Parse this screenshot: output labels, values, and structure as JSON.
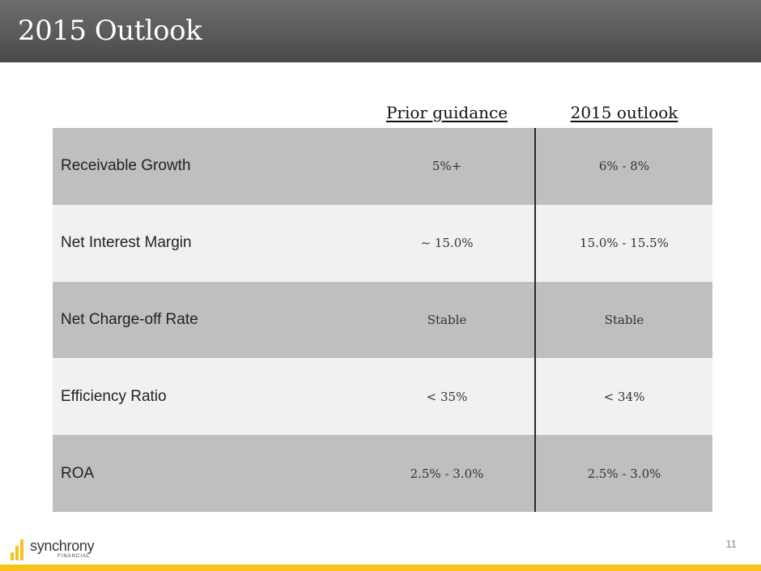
{
  "slide": {
    "title": "2015 Outlook",
    "page_number": "11"
  },
  "table": {
    "headers": {
      "prior": "Prior guidance",
      "outlook": "2015 outlook"
    },
    "rows": [
      {
        "metric": "Receivable Growth",
        "prior": "5%+",
        "outlook": "6% - 8%"
      },
      {
        "metric": "Net Interest Margin",
        "prior": "~ 15.0%",
        "outlook": "15.0% - 15.5%"
      },
      {
        "metric": "Net Charge-off Rate",
        "prior": "Stable",
        "outlook": "Stable"
      },
      {
        "metric": "Efficiency Ratio",
        "prior": "< 35%",
        "outlook": "< 34%"
      },
      {
        "metric": "ROA",
        "prior": "2.5% - 3.0%",
        "outlook": "2.5% - 3.0%"
      }
    ]
  },
  "logo": {
    "name": "synchrony",
    "subtitle": "FINANCIAL",
    "icon": "synchrony-logo-icon"
  },
  "colors": {
    "header_bg": "#5a5a5a",
    "row_dark": "#bfbfbf",
    "row_light": "#f1f1f1",
    "accent": "#f7c21b"
  }
}
